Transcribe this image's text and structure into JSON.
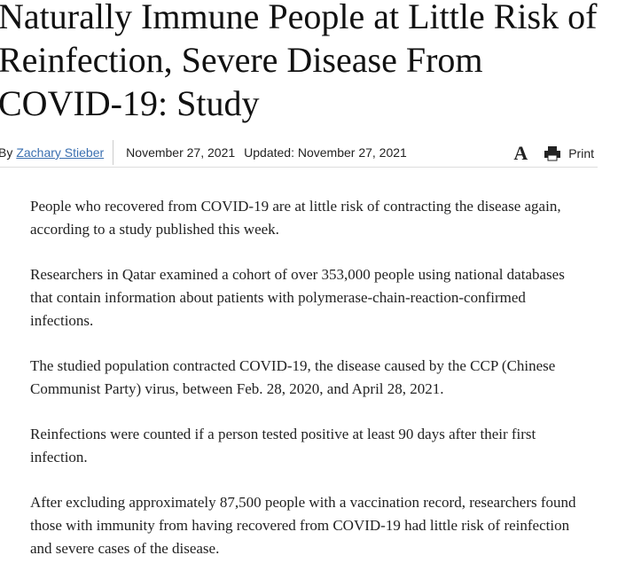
{
  "article": {
    "title": "Naturally Immune People at Little Risk of Reinfection, Severe Disease From COVID-19: Study",
    "byline": {
      "prefix": "By",
      "author": "Zachary Stieber",
      "date": "November 27, 2021",
      "updated": "Updated: November 27, 2021"
    },
    "tools": {
      "font_size": "A",
      "print": "Print"
    },
    "paragraphs": [
      "People who recovered from COVID-19 are at little risk of contracting the disease again, according to a study published this week.",
      "Researchers in Qatar examined a cohort of over 353,000 people using national databases that contain information about patients with polymerase-chain-reaction-confirmed infections.",
      "The studied population contracted COVID-19, the disease caused by the CCP (Chinese Communist Party) virus, between Feb. 28, 2020, and April 28, 2021.",
      "Reinfections were counted if a person tested positive at least 90 days after their first infection.",
      "After excluding approximately 87,500 people with a vaccination record, researchers found those with immunity from having recovered from COVID-19 had little risk of reinfection and severe cases of the disease."
    ]
  }
}
